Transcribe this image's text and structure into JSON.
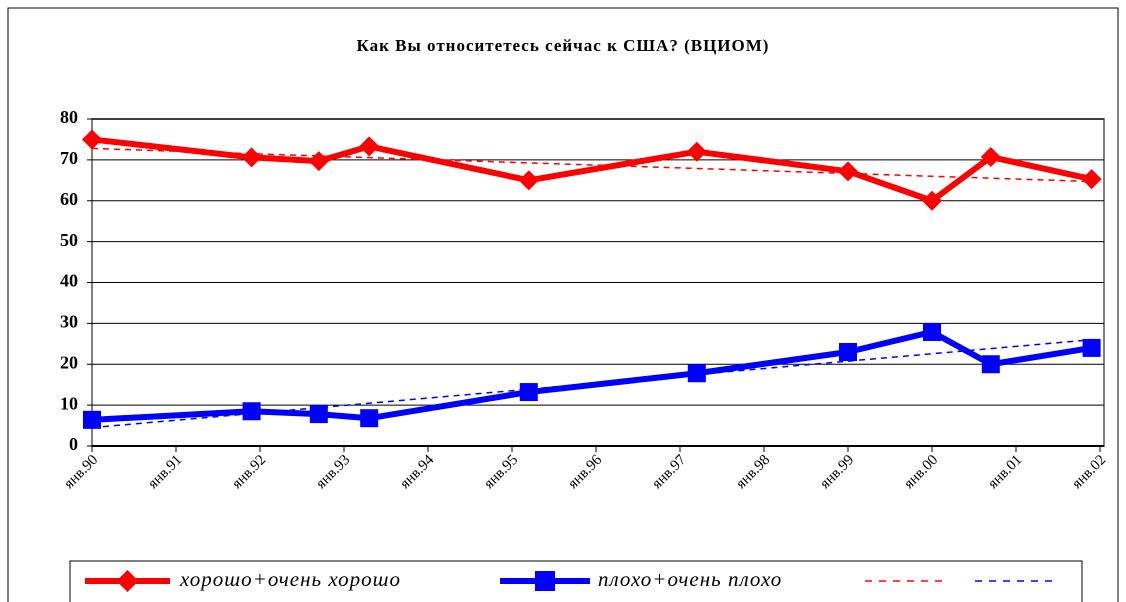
{
  "chart_data": {
    "type": "line",
    "title": "Как Вы относитетесь сейчас к США?  (ВЦИОМ)",
    "x": [
      1990.0,
      1991.9,
      1992.7,
      1993.3,
      1995.2,
      1997.2,
      1999.0,
      2000.0,
      2000.7,
      2001.9
    ],
    "series": [
      {
        "name": "хорошо+очень хорошо",
        "color": "#ff0000",
        "marker": "diamond",
        "values": [
          75,
          70.6,
          69.7,
          73.3,
          65,
          72,
          67.2,
          60,
          70.7,
          65.3
        ]
      },
      {
        "name": "плохо+очень плохо",
        "color": "#0000ff",
        "marker": "square",
        "values": [
          6.4,
          8.5,
          7.8,
          6.8,
          13.2,
          17.8,
          23,
          27.9,
          20,
          24
        ]
      }
    ],
    "trendlines": [
      {
        "color": "#ff0000",
        "x": [
          1990.0,
          2001.9
        ],
        "values": [
          72.8,
          64.7
        ]
      },
      {
        "color": "#0000ff",
        "x": [
          1990.0,
          2001.9
        ],
        "values": [
          4.5,
          26
        ]
      }
    ],
    "xlim": [
      1990,
      2002
    ],
    "xticks": [
      {
        "value": 1990,
        "label": "янв.90"
      },
      {
        "value": 1991,
        "label": "янв.91"
      },
      {
        "value": 1992,
        "label": "янв.92"
      },
      {
        "value": 1993,
        "label": "янв.93"
      },
      {
        "value": 1994,
        "label": "янв.94"
      },
      {
        "value": 1995,
        "label": "янв.95"
      },
      {
        "value": 1996,
        "label": "янв.96"
      },
      {
        "value": 1997,
        "label": "янв.97"
      },
      {
        "value": 1998,
        "label": "янв.98"
      },
      {
        "value": 1999,
        "label": "янв.99"
      },
      {
        "value": 2000,
        "label": "янв.00"
      },
      {
        "value": 2001,
        "label": "янв.01"
      },
      {
        "value": 2002,
        "label": "янв.02"
      }
    ],
    "ylim": [
      0,
      80
    ],
    "yticks": [
      0,
      10,
      20,
      30,
      40,
      50,
      60,
      70,
      80
    ],
    "grid": true,
    "legend": "bottom"
  }
}
